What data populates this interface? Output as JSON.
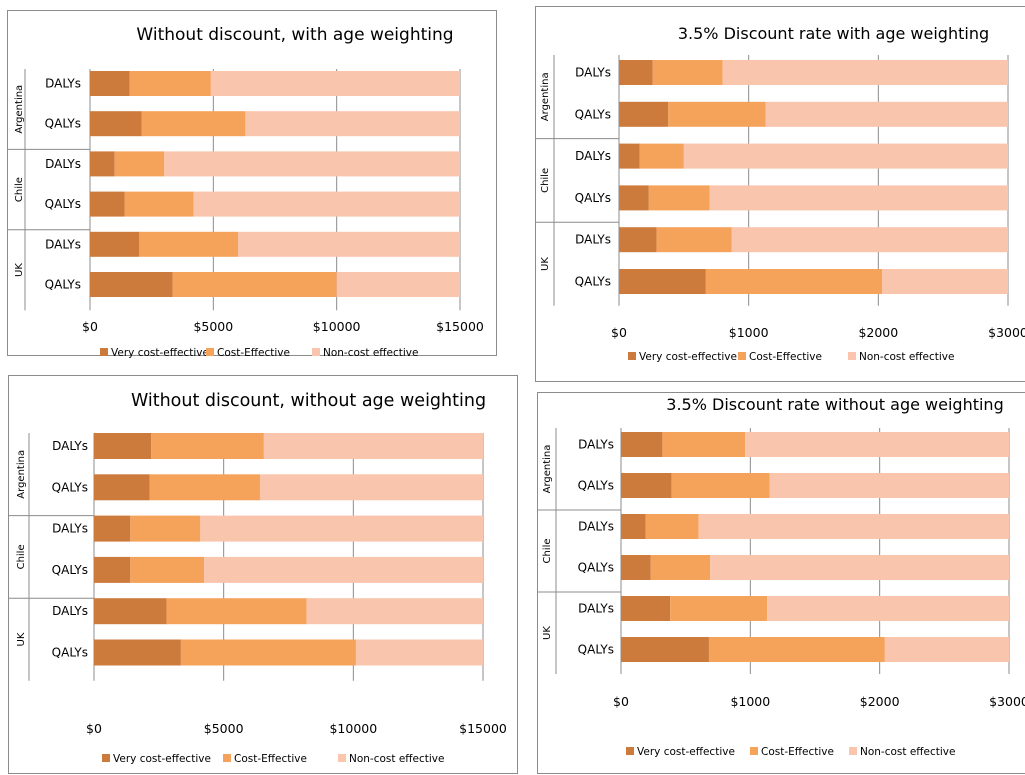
{
  "colors": {
    "very_cost_effective": "#cd7b3d",
    "cost_effective": "#f5a25b",
    "non_cost_effective": "#f9c5ac"
  },
  "chart_data": [
    {
      "type": "bar",
      "orientation": "horizontal",
      "stacked": true,
      "title": "Without discount, with age weighting",
      "groups": [
        "Argentina",
        "Chile",
        "UK"
      ],
      "categories": [
        "DALYs",
        "QALYs",
        "DALYs",
        "QALYs",
        "DALYs",
        "QALYs"
      ],
      "xlim": [
        0,
        15000
      ],
      "xticks": [
        "$0",
        "$5000",
        "$10000",
        "$15000"
      ],
      "grid": true,
      "legend_position": "bottom",
      "series": [
        {
          "name": "Very cost-effective",
          "values": [
            1600,
            2100,
            1000,
            1400,
            2000,
            3350
          ]
        },
        {
          "name": "Cost-Effective",
          "values": [
            3300,
            4200,
            2000,
            2800,
            4000,
            6650
          ]
        },
        {
          "name": "Non-cost effective",
          "values": [
            10100,
            8700,
            12000,
            10800,
            9000,
            5000
          ]
        }
      ]
    },
    {
      "type": "bar",
      "orientation": "horizontal",
      "stacked": true,
      "title": "3.5% Discount rate with age weighting",
      "groups": [
        "Argentina",
        "Chile",
        "UK"
      ],
      "categories": [
        "DALYs",
        "QALYs",
        "DALYs",
        "QALYs",
        "DALYs",
        "QALYs"
      ],
      "xlim": [
        0,
        3000
      ],
      "xticks": [
        "$0",
        "$1000",
        "$2000",
        "$3000"
      ],
      "grid": true,
      "legend_position": "bottom",
      "series": [
        {
          "name": "Very cost-effective",
          "values": [
            260,
            380,
            160,
            230,
            290,
            670
          ]
        },
        {
          "name": "Cost-Effective",
          "values": [
            540,
            750,
            340,
            470,
            580,
            1360
          ]
        },
        {
          "name": "Non-cost effective",
          "values": [
            2200,
            1870,
            2500,
            2300,
            2130,
            970
          ]
        }
      ]
    },
    {
      "type": "bar",
      "orientation": "horizontal",
      "stacked": true,
      "title": "Without discount, without age weighting",
      "groups": [
        "Argentina",
        "Chile",
        "UK"
      ],
      "categories": [
        "DALYs",
        "QALYs",
        "DALYs",
        "QALYs",
        "DALYs",
        "QALYs"
      ],
      "xlim": [
        0,
        15000
      ],
      "xticks": [
        "$0",
        "$5000",
        "$10000",
        "$15000"
      ],
      "grid": true,
      "legend_position": "bottom",
      "series": [
        {
          "name": "Very cost-effective",
          "values": [
            2200,
            2150,
            1400,
            1400,
            2800,
            3350
          ]
        },
        {
          "name": "Cost-Effective",
          "values": [
            4350,
            4250,
            2700,
            2850,
            5400,
            6750
          ]
        },
        {
          "name": "Non-cost effective",
          "values": [
            8450,
            8600,
            10900,
            10750,
            6800,
            4900
          ]
        }
      ]
    },
    {
      "type": "bar",
      "orientation": "horizontal",
      "stacked": true,
      "title": "3.5% Discount rate without age weighting",
      "groups": [
        "Argentina",
        "Chile",
        "UK"
      ],
      "categories": [
        "DALYs",
        "QALYs",
        "DALYs",
        "QALYs",
        "DALYs",
        "QALYs"
      ],
      "xlim": [
        0,
        3000
      ],
      "xticks": [
        "$0",
        "$1000",
        "$2000",
        "$3000"
      ],
      "grid": true,
      "legend_position": "bottom",
      "series": [
        {
          "name": "Very cost-effective",
          "values": [
            320,
            390,
            190,
            230,
            380,
            680
          ]
        },
        {
          "name": "Cost-Effective",
          "values": [
            640,
            760,
            410,
            460,
            750,
            1360
          ]
        },
        {
          "name": "Non-cost effective",
          "values": [
            2040,
            1850,
            2400,
            2310,
            1870,
            960
          ]
        }
      ]
    }
  ]
}
